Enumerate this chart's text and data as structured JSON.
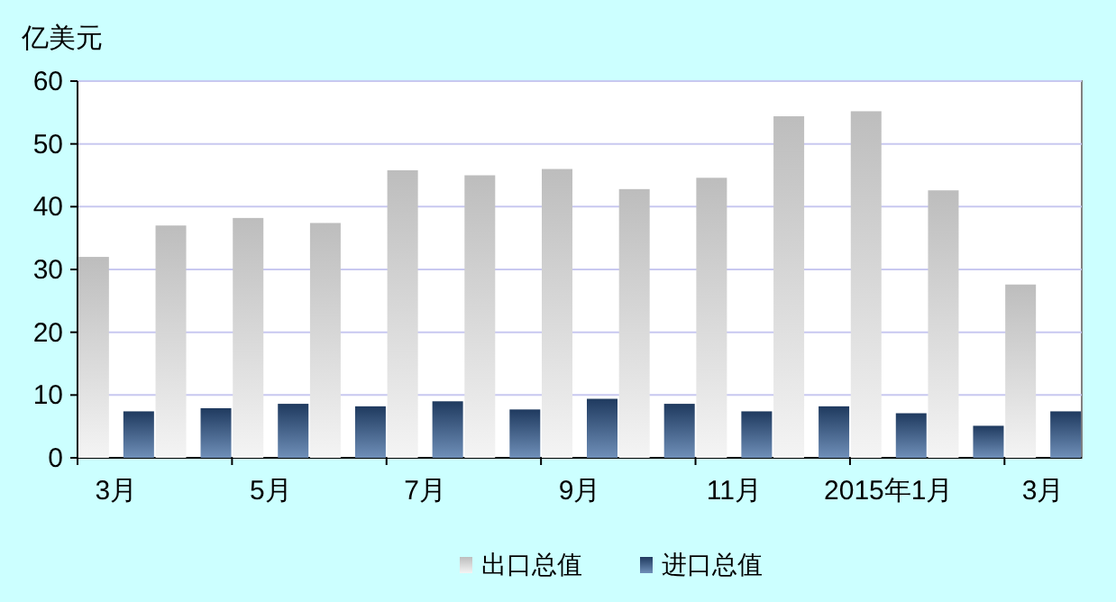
{
  "chart_data": {
    "type": "bar",
    "ylabel": "亿美元",
    "categories": [
      "3月",
      null,
      "5月",
      null,
      "7月",
      null,
      "9月",
      null,
      "11月",
      null,
      "2015年1月",
      null,
      "3月"
    ],
    "series": [
      {
        "name": "出口总值",
        "color": "#bdbdbd",
        "values": [
          32,
          37,
          38.2,
          37.4,
          45.8,
          45,
          46,
          42.8,
          44.6,
          54.4,
          55.2,
          42.6,
          27.6
        ]
      },
      {
        "name": "进口总值",
        "color": "#1f3a5f",
        "values": [
          7.4,
          7.9,
          8.6,
          8.2,
          9,
          7.7,
          9.4,
          8.6,
          7.4,
          8.2,
          7.1,
          5.1,
          7.4
        ]
      }
    ],
    "ylim": [
      0,
      60
    ],
    "yticks": [
      0,
      10,
      20,
      30,
      40,
      50,
      60
    ],
    "grid": "y",
    "legend": "bottom"
  }
}
